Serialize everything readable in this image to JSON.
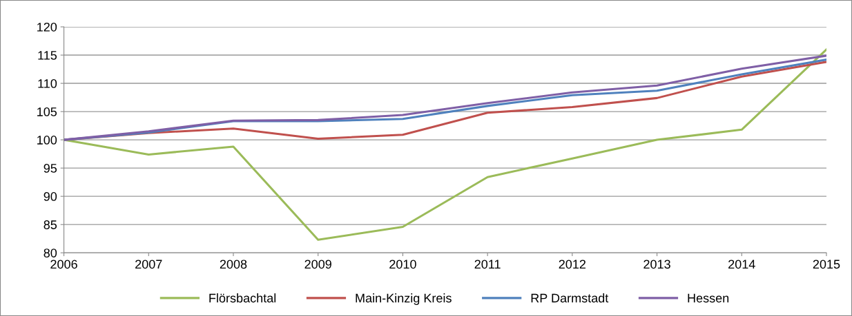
{
  "chart_data": {
    "type": "line",
    "x": [
      2006,
      2007,
      2008,
      2009,
      2010,
      2011,
      2012,
      2013,
      2014,
      2015
    ],
    "series": [
      {
        "name": "Flörsbachtal",
        "color": "#9bbb59",
        "values": [
          100,
          97.4,
          98.8,
          82.3,
          84.6,
          93.4,
          96.7,
          100.0,
          101.8,
          116
        ]
      },
      {
        "name": "Main-Kinzig Kreis",
        "color": "#c0504d",
        "values": [
          100,
          101.2,
          102.0,
          100.2,
          100.9,
          104.8,
          105.8,
          107.4,
          111.2,
          113.8
        ]
      },
      {
        "name": "RP Darmstadt",
        "color": "#4f81bd",
        "values": [
          100,
          101.3,
          103.3,
          103.3,
          103.7,
          106.0,
          107.9,
          108.7,
          111.6,
          114.2
        ]
      },
      {
        "name": "Hessen",
        "color": "#7f5fa6",
        "values": [
          100,
          101.5,
          103.4,
          103.5,
          104.4,
          106.5,
          108.4,
          109.6,
          112.6,
          114.9
        ]
      }
    ],
    "xlim": [
      2006,
      2015
    ],
    "xticks": [
      2006,
      2007,
      2008,
      2009,
      2010,
      2011,
      2012,
      2013,
      2014,
      2015
    ],
    "ylim": [
      80,
      120
    ],
    "yticks": [
      80,
      85,
      90,
      95,
      100,
      105,
      110,
      115,
      120
    ],
    "grid": "y",
    "legend": "bottom",
    "marker": "none",
    "line_style": "solid"
  }
}
